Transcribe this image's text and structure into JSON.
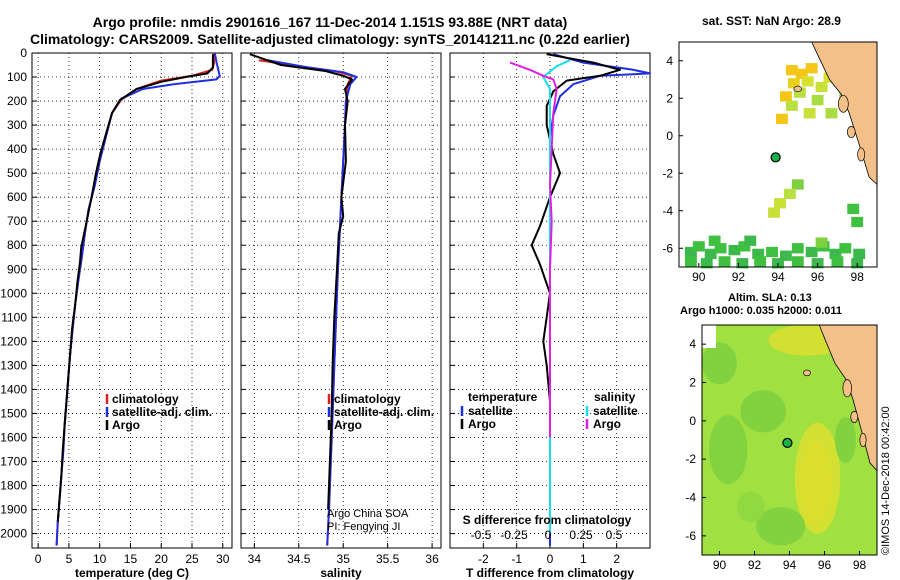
{
  "title_line1": "Argo profile: nmdis 2901616_167 11-Dec-2014 1.151S 93.88E (NRT data)",
  "title_line2": "Climatology: CARS2009. Satellite-adjusted climatology: synTS_20141211.nc (0.22d earlier)",
  "colors": {
    "climatology": "#e02020",
    "satellite": "#1f2fe0",
    "argo": "#000000",
    "salinity_sat": "#19e0e8",
    "salinity_argo": "#e020e0",
    "land": "#f4c08a",
    "marker": "#19b04a"
  },
  "chart_data": [
    {
      "type": "line",
      "name": "temperature",
      "xlabel": "temperature (deg C)",
      "ylabel": "",
      "xlim": [
        -1,
        31.5
      ],
      "ylim": [
        0,
        2060
      ],
      "xticks": [
        0,
        5,
        10,
        15,
        20,
        25,
        30
      ],
      "yticks": [
        0,
        100,
        200,
        300,
        400,
        500,
        600,
        700,
        800,
        900,
        1000,
        1100,
        1200,
        1300,
        1400,
        1500,
        1600,
        1700,
        1800,
        1900,
        2000
      ],
      "legend": [
        "climatology",
        "satellite-adj. clim.",
        "Argo"
      ],
      "series": [
        {
          "name": "climatology",
          "color_key": "climatology",
          "points": [
            [
              28.5,
              0
            ],
            [
              28.6,
              40
            ],
            [
              28.3,
              70
            ],
            [
              25,
              95
            ],
            [
              20,
              115
            ],
            [
              16,
              150
            ],
            [
              13.5,
              195
            ],
            [
              12,
              250
            ],
            [
              11,
              350
            ],
            [
              10,
              450
            ],
            [
              9.2,
              550
            ],
            [
              8.2,
              650
            ],
            [
              7.6,
              750
            ],
            [
              7.1,
              850
            ],
            [
              6.5,
              950
            ],
            [
              6,
              1050
            ],
            [
              5.6,
              1150
            ],
            [
              5.2,
              1250
            ],
            [
              4.9,
              1350
            ],
            [
              4.6,
              1450
            ],
            [
              4.3,
              1550
            ],
            [
              4.1,
              1650
            ],
            [
              3.8,
              1750
            ],
            [
              3.5,
              1850
            ],
            [
              3.2,
              1950
            ],
            [
              3,
              2050
            ]
          ]
        },
        {
          "name": "satellite-adj. clim.",
          "color_key": "satellite",
          "points": [
            [
              28.7,
              0
            ],
            [
              29,
              40
            ],
            [
              29.5,
              95
            ],
            [
              29,
              110
            ],
            [
              22,
              130
            ],
            [
              17,
              150
            ],
            [
              13.5,
              190
            ],
            [
              12,
              250
            ],
            [
              11,
              350
            ],
            [
              10,
              450
            ],
            [
              9.2,
              550
            ],
            [
              8.2,
              650
            ],
            [
              7.6,
              750
            ],
            [
              7.1,
              850
            ],
            [
              6.5,
              950
            ],
            [
              6,
              1050
            ],
            [
              5.6,
              1150
            ],
            [
              5.2,
              1250
            ],
            [
              4.9,
              1350
            ],
            [
              4.6,
              1450
            ],
            [
              4.3,
              1550
            ],
            [
              4.1,
              1650
            ],
            [
              3.8,
              1750
            ],
            [
              3.5,
              1850
            ],
            [
              3.2,
              1950
            ],
            [
              3,
              2050
            ]
          ]
        },
        {
          "name": "Argo",
          "color_key": "argo",
          "points": [
            [
              28.4,
              5
            ],
            [
              28.4,
              60
            ],
            [
              27.5,
              85
            ],
            [
              24,
              100
            ],
            [
              20,
              120
            ],
            [
              16,
              150
            ],
            [
              13.3,
              195
            ],
            [
              12,
              250
            ],
            [
              11.2,
              320
            ],
            [
              10.1,
              420
            ],
            [
              9.4,
              500
            ],
            [
              8.6,
              610
            ],
            [
              7.8,
              710
            ],
            [
              7,
              810
            ],
            [
              6.8,
              870
            ],
            [
              6.4,
              950
            ],
            [
              6,
              1050
            ],
            [
              5.5,
              1150
            ],
            [
              5.2,
              1250
            ],
            [
              4.9,
              1350
            ],
            [
              4.6,
              1450
            ],
            [
              4.3,
              1550
            ],
            [
              4,
              1650
            ],
            [
              3.8,
              1750
            ],
            [
              3.5,
              1850
            ],
            [
              3.2,
              1950
            ]
          ]
        }
      ]
    },
    {
      "type": "line",
      "name": "salinity",
      "xlabel": "salinity",
      "xlim": [
        33.85,
        36.1
      ],
      "ylim": [
        0,
        2060
      ],
      "xticks": [
        34,
        34.5,
        35,
        35.5,
        36
      ],
      "legend": [
        "climatology",
        "satellite-adj. clim.",
        "Argo"
      ],
      "annotations": [
        "Argo China SOA",
        "PI: Fengying JI"
      ],
      "series": [
        {
          "name": "climatology",
          "color_key": "climatology",
          "points": [
            [
              34.05,
              30
            ],
            [
              34.5,
              55
            ],
            [
              34.9,
              75
            ],
            [
              35.1,
              95
            ],
            [
              35.05,
              130
            ],
            [
              35.03,
              200
            ],
            [
              35.02,
              300
            ],
            [
              35,
              450
            ],
            [
              34.98,
              600
            ],
            [
              34.96,
              750
            ],
            [
              34.94,
              900
            ],
            [
              34.92,
              1100
            ],
            [
              34.9,
              1300
            ],
            [
              34.88,
              1500
            ],
            [
              34.86,
              1700
            ],
            [
              34.84,
              1900
            ],
            [
              34.82,
              2050
            ]
          ]
        },
        {
          "name": "satellite-adj. clim.",
          "color_key": "satellite",
          "points": [
            [
              34.15,
              30
            ],
            [
              34.6,
              60
            ],
            [
              35,
              80
            ],
            [
              35.15,
              100
            ],
            [
              35.08,
              130
            ],
            [
              35.03,
              200
            ],
            [
              35.02,
              300
            ],
            [
              35,
              450
            ],
            [
              34.98,
              600
            ],
            [
              34.96,
              750
            ],
            [
              34.94,
              900
            ],
            [
              34.92,
              1100
            ],
            [
              34.9,
              1300
            ],
            [
              34.88,
              1500
            ],
            [
              34.86,
              1700
            ],
            [
              34.84,
              1900
            ],
            [
              34.82,
              2050
            ]
          ]
        },
        {
          "name": "Argo",
          "color_key": "argo",
          "points": [
            [
              33.95,
              5
            ],
            [
              34.3,
              50
            ],
            [
              34.8,
              75
            ],
            [
              35,
              95
            ],
            [
              35.1,
              110
            ],
            [
              35.02,
              150
            ],
            [
              35.05,
              200
            ],
            [
              35.02,
              300
            ],
            [
              35.03,
              450
            ],
            [
              34.98,
              600
            ],
            [
              35,
              680
            ],
            [
              34.95,
              750
            ],
            [
              34.93,
              900
            ],
            [
              34.9,
              1100
            ],
            [
              34.88,
              1300
            ],
            [
              34.87,
              1500
            ],
            [
              34.85,
              1700
            ],
            [
              34.83,
              1900
            ]
          ]
        }
      ]
    },
    {
      "type": "line",
      "name": "difference",
      "xlabel": "T difference from climatology",
      "xlabel_top": "S difference from climatology",
      "xlim": [
        -3,
        3
      ],
      "ylim": [
        0,
        2060
      ],
      "xticks": [
        -2,
        -1,
        0,
        1,
        2
      ],
      "xticks_top": [
        "-0.5",
        "-0.25",
        "0",
        "0.25",
        "0.5"
      ],
      "legend_left": {
        "heading": "temperature",
        "items": [
          "satellite",
          "Argo"
        ]
      },
      "legend_right": {
        "heading": "salinity",
        "items": [
          "satellite",
          "Argo"
        ]
      },
      "series": [
        {
          "name": "T satellite",
          "color_key": "satellite",
          "points": [
            [
              0.1,
              5
            ],
            [
              1,
              40
            ],
            [
              2.5,
              70
            ],
            [
              3,
              85
            ],
            [
              1.5,
              95
            ],
            [
              0.7,
              130
            ],
            [
              0.3,
              180
            ],
            [
              0.1,
              260
            ],
            [
              0,
              350
            ],
            [
              0,
              2050
            ]
          ]
        },
        {
          "name": "T Argo",
          "color_key": "argo",
          "points": [
            [
              -0.1,
              5
            ],
            [
              1.3,
              40
            ],
            [
              2.1,
              70
            ],
            [
              1.5,
              95
            ],
            [
              0.5,
              115
            ],
            [
              0.1,
              160
            ],
            [
              -0.1,
              220
            ],
            [
              -0.1,
              300
            ],
            [
              0.1,
              420
            ],
            [
              0.3,
              500
            ],
            [
              0,
              600
            ],
            [
              -0.3,
              720
            ],
            [
              -0.55,
              800
            ],
            [
              -0.3,
              880
            ],
            [
              0,
              1000
            ],
            [
              -0.1,
              1100
            ],
            [
              -0.2,
              1200
            ],
            [
              -0.1,
              1300
            ],
            [
              0,
              1450
            ],
            [
              0,
              1600
            ],
            [
              0,
              1950
            ]
          ]
        },
        {
          "name": "S satellite",
          "color_key": "salinity_sat",
          "points": [
            [
              0.6,
              30
            ],
            [
              0.2,
              55
            ],
            [
              -0.2,
              100
            ],
            [
              0,
              150
            ],
            [
              0,
              200
            ],
            [
              0,
              1000
            ],
            [
              0,
              2000
            ]
          ]
        },
        {
          "name": "S Argo",
          "color_key": "salinity_argo",
          "points": [
            [
              -1.2,
              40
            ],
            [
              -0.9,
              55
            ],
            [
              -0.6,
              70
            ],
            [
              -0.2,
              95
            ],
            [
              0.1,
              110
            ],
            [
              0.2,
              150
            ],
            [
              0.1,
              250
            ],
            [
              0.05,
              400
            ],
            [
              0,
              550
            ],
            [
              0.05,
              700
            ],
            [
              0,
              900
            ],
            [
              0,
              1200
            ],
            [
              0,
              1600
            ]
          ]
        }
      ]
    },
    {
      "type": "heatmap",
      "name": "sst_map",
      "title": "sat. SST: NaN Argo: 28.9",
      "xlim": [
        89,
        99
      ],
      "ylim": [
        -7,
        5
      ],
      "xticks": [
        90,
        92,
        94,
        96,
        98
      ],
      "yticks": [
        4,
        2,
        0,
        -2,
        -4,
        -6
      ],
      "argo_position": [
        93.88,
        -1.151
      ]
    },
    {
      "type": "heatmap",
      "name": "sla_map",
      "title": "Altim. SLA: 0.13",
      "subtitle": "Argo h1000: 0.035 h2000: 0.011",
      "xlim": [
        89,
        99
      ],
      "ylim": [
        -7,
        5
      ],
      "xticks": [
        90,
        92,
        94,
        96,
        98
      ],
      "yticks": [
        4,
        2,
        0,
        -2,
        -4,
        -6
      ],
      "argo_position": [
        93.88,
        -1.151
      ]
    }
  ],
  "footer_stamp": "©IMOS 14-Dec-2018 00:42:00"
}
